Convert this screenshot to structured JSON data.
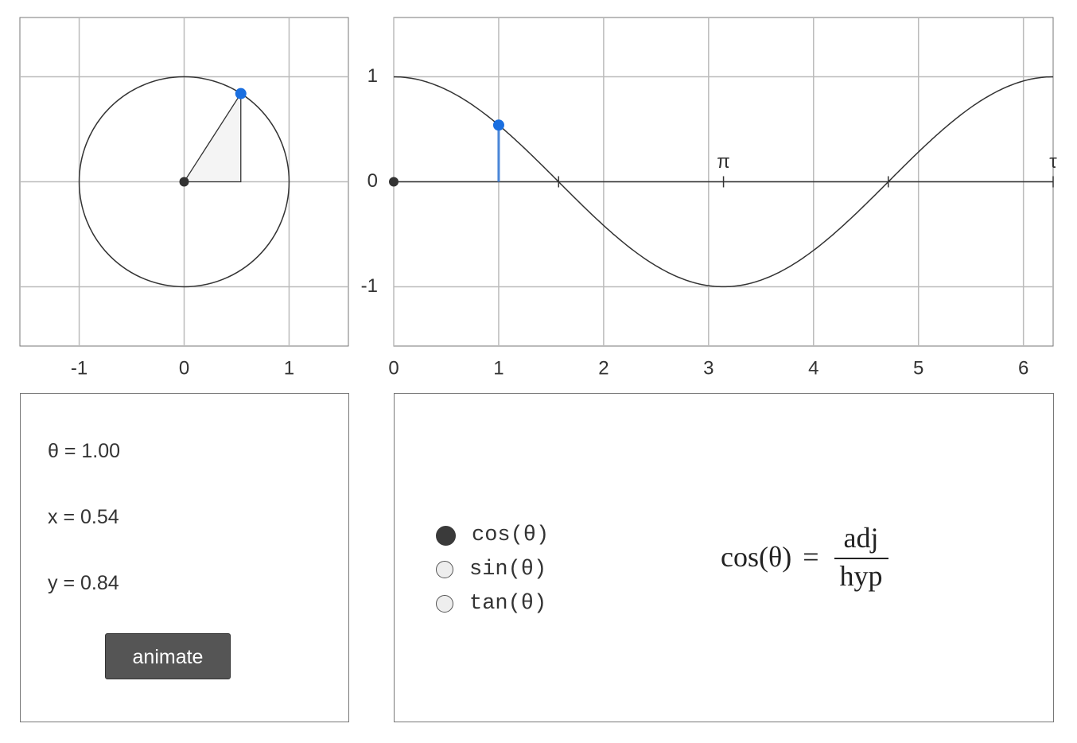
{
  "point": {
    "theta": 1,
    "x": 0.54,
    "y": 0.84
  },
  "circle_plot": {
    "xlim": [
      -1.565,
      1.565
    ],
    "ylim": [
      -1.565,
      1.565
    ],
    "xticks": [
      -1,
      0,
      1
    ],
    "yticks": [
      -1,
      0,
      1
    ],
    "grid": true
  },
  "wave_plot": {
    "xlim": [
      0,
      6.283
    ],
    "ylim": [
      -1.565,
      1.565
    ],
    "xticks": [
      0,
      1,
      2,
      3,
      4,
      5,
      6
    ],
    "yticks": [
      -1,
      0,
      1
    ],
    "grid": true,
    "axis_marks": [
      1.571,
      {
        "value": 3.142,
        "label": "π"
      },
      4.712,
      {
        "value": 6.283,
        "label": "τ"
      }
    ]
  },
  "readout": [
    "θ = 1.00",
    "x = 0.54",
    "y = 0.84"
  ],
  "button": "animate",
  "options": [
    {
      "label": "cos(θ)",
      "selected": true
    },
    {
      "label": "sin(θ)",
      "selected": false
    },
    {
      "label": "tan(θ)",
      "selected": false
    }
  ],
  "formula": {
    "lhs": "cos(θ)",
    "relation": "=",
    "numerator": "adj",
    "denominator": "hyp"
  }
}
